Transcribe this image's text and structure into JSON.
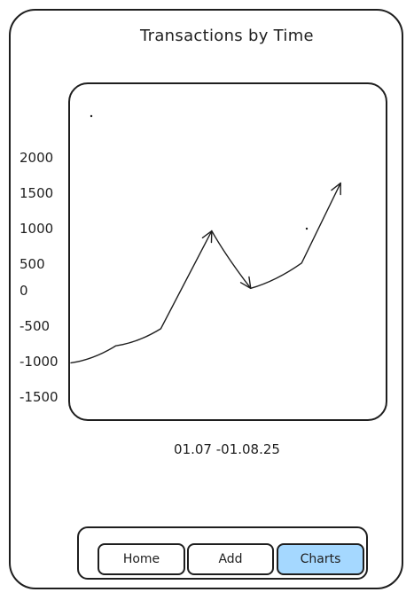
{
  "page": {
    "title": "Transactions by Time",
    "date_range": "01.07 -01.08.25"
  },
  "nav": {
    "items": [
      {
        "label": "Home",
        "active": false
      },
      {
        "label": "Add",
        "active": false
      },
      {
        "label": "Charts",
        "active": true
      }
    ],
    "active_color": "#a5d8ff"
  },
  "chart_data": {
    "type": "line",
    "title": "Transactions by Time",
    "xlabel": "01.07 -01.08.25",
    "ylabel": "",
    "y_ticks": [
      "2000",
      "1500",
      "1000",
      "500",
      "0",
      "-500",
      "-1000",
      "-1500"
    ],
    "ylim": [
      -1500,
      2000
    ],
    "grid": false,
    "series": [
      {
        "points": [
          {
            "t": 0.0,
            "y": -1000
          },
          {
            "t": 0.15,
            "y": -750
          },
          {
            "t": 0.3,
            "y": -500
          },
          {
            "t": 0.47,
            "y": 930
          },
          {
            "t": 0.6,
            "y": 90
          },
          {
            "t": 0.77,
            "y": 460
          },
          {
            "t": 0.9,
            "y": 1630
          }
        ]
      }
    ]
  }
}
